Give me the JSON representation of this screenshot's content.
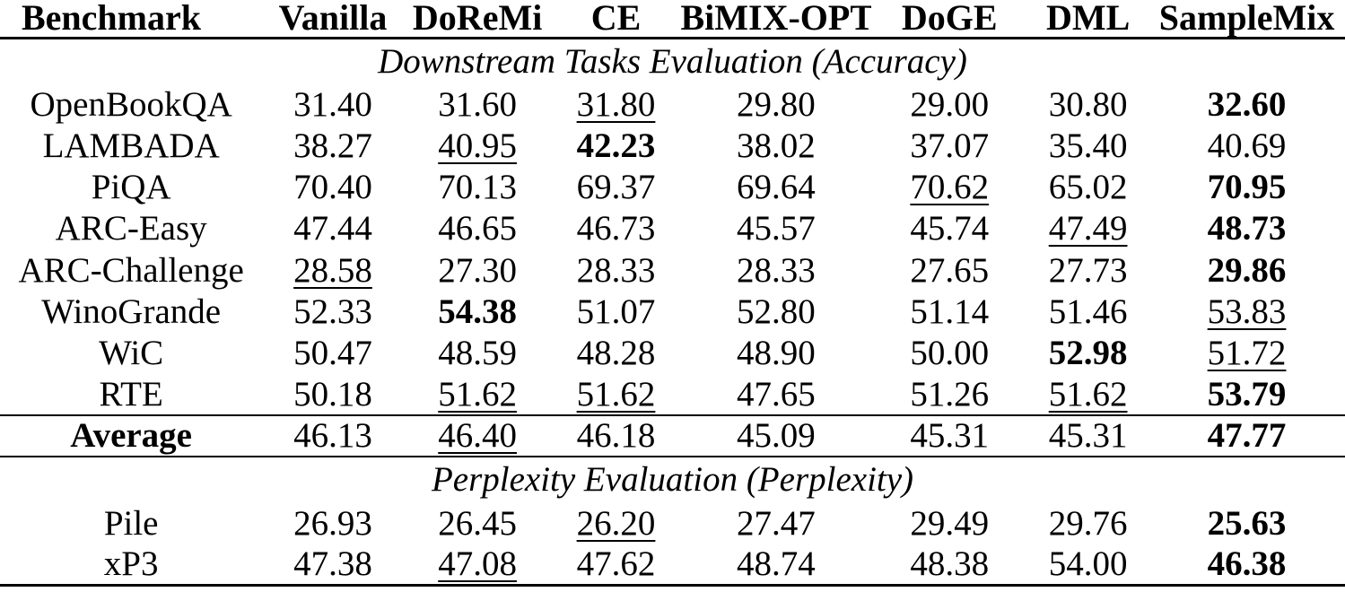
{
  "page": {
    "background_color": "#ffffff",
    "text_color": "#000000"
  },
  "table": {
    "columns": [
      "Benchmark",
      "Vanilla",
      "DoReMi",
      "CE",
      "BiMIX-OPT",
      "DoGE",
      "DML",
      "SampleMix"
    ],
    "blocks": [
      {
        "type": "section_title",
        "text": "Downstream Tasks Evaluation (Accuracy)"
      },
      {
        "type": "row",
        "label": "OpenBookQA",
        "label_bold": false,
        "cells": [
          {
            "v": "31.40",
            "style": "normal"
          },
          {
            "v": "31.60",
            "style": "normal"
          },
          {
            "v": "31.80",
            "style": "underline"
          },
          {
            "v": "29.80",
            "style": "normal"
          },
          {
            "v": "29.00",
            "style": "normal"
          },
          {
            "v": "30.80",
            "style": "normal"
          },
          {
            "v": "32.60",
            "style": "bold"
          }
        ]
      },
      {
        "type": "row",
        "label": "LAMBADA",
        "label_bold": false,
        "cells": [
          {
            "v": "38.27",
            "style": "normal"
          },
          {
            "v": "40.95",
            "style": "underline"
          },
          {
            "v": "42.23",
            "style": "bold"
          },
          {
            "v": "38.02",
            "style": "normal"
          },
          {
            "v": "37.07",
            "style": "normal"
          },
          {
            "v": "35.40",
            "style": "normal"
          },
          {
            "v": "40.69",
            "style": "normal"
          }
        ]
      },
      {
        "type": "row",
        "label": "PiQA",
        "label_bold": false,
        "cells": [
          {
            "v": "70.40",
            "style": "normal"
          },
          {
            "v": "70.13",
            "style": "normal"
          },
          {
            "v": "69.37",
            "style": "normal"
          },
          {
            "v": "69.64",
            "style": "normal"
          },
          {
            "v": "70.62",
            "style": "underline"
          },
          {
            "v": "65.02",
            "style": "normal"
          },
          {
            "v": "70.95",
            "style": "bold"
          }
        ]
      },
      {
        "type": "row",
        "label": "ARC-Easy",
        "label_bold": false,
        "cells": [
          {
            "v": "47.44",
            "style": "normal"
          },
          {
            "v": "46.65",
            "style": "normal"
          },
          {
            "v": "46.73",
            "style": "normal"
          },
          {
            "v": "45.57",
            "style": "normal"
          },
          {
            "v": "45.74",
            "style": "normal"
          },
          {
            "v": "47.49",
            "style": "underline"
          },
          {
            "v": "48.73",
            "style": "bold"
          }
        ]
      },
      {
        "type": "row",
        "label": "ARC-Challenge",
        "label_bold": false,
        "cells": [
          {
            "v": "28.58",
            "style": "underline"
          },
          {
            "v": "27.30",
            "style": "normal"
          },
          {
            "v": "28.33",
            "style": "normal"
          },
          {
            "v": "28.33",
            "style": "normal"
          },
          {
            "v": "27.65",
            "style": "normal"
          },
          {
            "v": "27.73",
            "style": "normal"
          },
          {
            "v": "29.86",
            "style": "bold"
          }
        ]
      },
      {
        "type": "row",
        "label": "WinoGrande",
        "label_bold": false,
        "cells": [
          {
            "v": "52.33",
            "style": "normal"
          },
          {
            "v": "54.38",
            "style": "bold"
          },
          {
            "v": "51.07",
            "style": "normal"
          },
          {
            "v": "52.80",
            "style": "normal"
          },
          {
            "v": "51.14",
            "style": "normal"
          },
          {
            "v": "51.46",
            "style": "normal"
          },
          {
            "v": "53.83",
            "style": "underline"
          }
        ]
      },
      {
        "type": "row",
        "label": "WiC",
        "label_bold": false,
        "cells": [
          {
            "v": "50.47",
            "style": "normal"
          },
          {
            "v": "48.59",
            "style": "normal"
          },
          {
            "v": "48.28",
            "style": "normal"
          },
          {
            "v": "48.90",
            "style": "normal"
          },
          {
            "v": "50.00",
            "style": "normal"
          },
          {
            "v": "52.98",
            "style": "bold"
          },
          {
            "v": "51.72",
            "style": "underline"
          }
        ]
      },
      {
        "type": "row",
        "label": "RTE",
        "label_bold": false,
        "cells": [
          {
            "v": "50.18",
            "style": "normal"
          },
          {
            "v": "51.62",
            "style": "underline"
          },
          {
            "v": "51.62",
            "style": "underline"
          },
          {
            "v": "47.65",
            "style": "normal"
          },
          {
            "v": "51.26",
            "style": "normal"
          },
          {
            "v": "51.62",
            "style": "underline"
          },
          {
            "v": "53.79",
            "style": "bold"
          }
        ]
      },
      {
        "type": "row",
        "label": "Average",
        "label_bold": true,
        "rule_above": true,
        "rule_below": true,
        "cells": [
          {
            "v": "46.13",
            "style": "normal"
          },
          {
            "v": "46.40",
            "style": "underline"
          },
          {
            "v": "46.18",
            "style": "normal"
          },
          {
            "v": "45.09",
            "style": "normal"
          },
          {
            "v": "45.31",
            "style": "normal"
          },
          {
            "v": "45.31",
            "style": "normal"
          },
          {
            "v": "47.77",
            "style": "bold"
          }
        ]
      },
      {
        "type": "section_title",
        "text": "Perplexity Evaluation (Perplexity)"
      },
      {
        "type": "row",
        "label": "Pile",
        "label_bold": false,
        "cells": [
          {
            "v": "26.93",
            "style": "normal"
          },
          {
            "v": "26.45",
            "style": "normal"
          },
          {
            "v": "26.20",
            "style": "underline"
          },
          {
            "v": "27.47",
            "style": "normal"
          },
          {
            "v": "29.49",
            "style": "normal"
          },
          {
            "v": "29.76",
            "style": "normal"
          },
          {
            "v": "25.63",
            "style": "bold"
          }
        ]
      },
      {
        "type": "row",
        "label": "xP3",
        "label_bold": false,
        "cells": [
          {
            "v": "47.38",
            "style": "normal"
          },
          {
            "v": "47.08",
            "style": "underline"
          },
          {
            "v": "47.62",
            "style": "normal"
          },
          {
            "v": "48.74",
            "style": "normal"
          },
          {
            "v": "48.38",
            "style": "normal"
          },
          {
            "v": "54.00",
            "style": "normal"
          },
          {
            "v": "46.38",
            "style": "bold"
          }
        ]
      }
    ]
  }
}
